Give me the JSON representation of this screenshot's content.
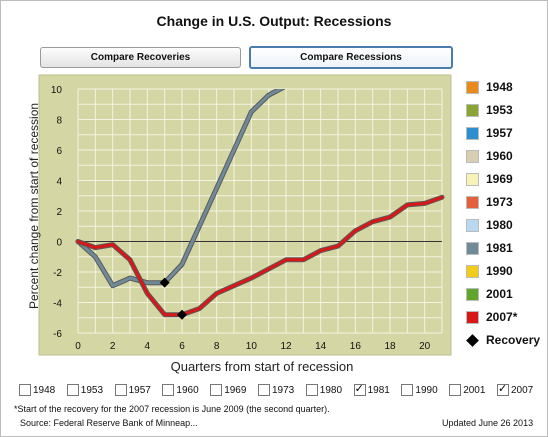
{
  "title": "Change in U.S. Output: Recessions",
  "buttons": {
    "recoveries": "Compare Recoveries",
    "recessions": "Compare Recessions"
  },
  "chart_data": {
    "type": "line",
    "xlabel": "Quarters from start of recession",
    "ylabel": "Percent change from start of recession",
    "xlim": [
      0,
      21
    ],
    "ylim": [
      -6,
      10
    ],
    "xticks": [
      0,
      2,
      4,
      6,
      8,
      10,
      12,
      14,
      16,
      18,
      20
    ],
    "yticks": [
      -6,
      -4,
      -2,
      0,
      2,
      4,
      6,
      8,
      10
    ],
    "grid": true,
    "series": [
      {
        "name": "1981",
        "color": "#6f8a99",
        "x": [
          0,
          1,
          2,
          3,
          4,
          5,
          6,
          7,
          8,
          9,
          10,
          11,
          12
        ],
        "y": [
          0,
          -1.0,
          -2.9,
          -2.4,
          -2.7,
          -2.7,
          -1.5,
          1.0,
          3.5,
          6.0,
          8.5,
          9.6,
          10.2
        ],
        "recovery": [
          5,
          -2.7
        ]
      },
      {
        "name": "2007*",
        "color": "#d81818",
        "x": [
          0,
          1,
          2,
          3,
          4,
          5,
          6,
          7,
          8,
          9,
          10,
          11,
          12,
          13,
          14,
          15,
          16,
          17,
          18,
          19,
          20,
          21
        ],
        "y": [
          0,
          -0.4,
          -0.2,
          -1.2,
          -3.4,
          -4.8,
          -4.8,
          -4.4,
          -3.4,
          -2.9,
          -2.4,
          -1.8,
          -1.2,
          -1.2,
          -0.6,
          -0.3,
          0.7,
          1.3,
          1.6,
          2.4,
          2.5,
          2.9
        ],
        "recovery": [
          6,
          -4.8
        ]
      }
    ],
    "legend": [
      {
        "label": "1948",
        "color": "#e98a1a"
      },
      {
        "label": "1953",
        "color": "#8aa533"
      },
      {
        "label": "1957",
        "color": "#2b8fd0"
      },
      {
        "label": "1960",
        "color": "#d8ceb0"
      },
      {
        "label": "1969",
        "color": "#f6f2b8"
      },
      {
        "label": "1973",
        "color": "#e4603c"
      },
      {
        "label": "1980",
        "color": "#b8d8ef"
      },
      {
        "label": "1981",
        "color": "#6f8a99"
      },
      {
        "label": "1990",
        "color": "#f2cc1a"
      },
      {
        "label": "2001",
        "color": "#62a52b"
      },
      {
        "label": "2007*",
        "color": "#d81818"
      }
    ],
    "legend_recovery": "Recovery"
  },
  "checkboxes": [
    {
      "label": "1948",
      "checked": false
    },
    {
      "label": "1953",
      "checked": false
    },
    {
      "label": "1957",
      "checked": false
    },
    {
      "label": "1960",
      "checked": false
    },
    {
      "label": "1969",
      "checked": false
    },
    {
      "label": "1973",
      "checked": false
    },
    {
      "label": "1980",
      "checked": false
    },
    {
      "label": "1981",
      "checked": true
    },
    {
      "label": "1990",
      "checked": false
    },
    {
      "label": "2001",
      "checked": false
    },
    {
      "label": "2007",
      "checked": true
    }
  ],
  "footnote": "*Start of the recovery for the 2007 recession is June 2009 (the second quarter).",
  "source": "Source: Federal Reserve Bank of Minneap...",
  "updated": "Updated June 26 2013"
}
